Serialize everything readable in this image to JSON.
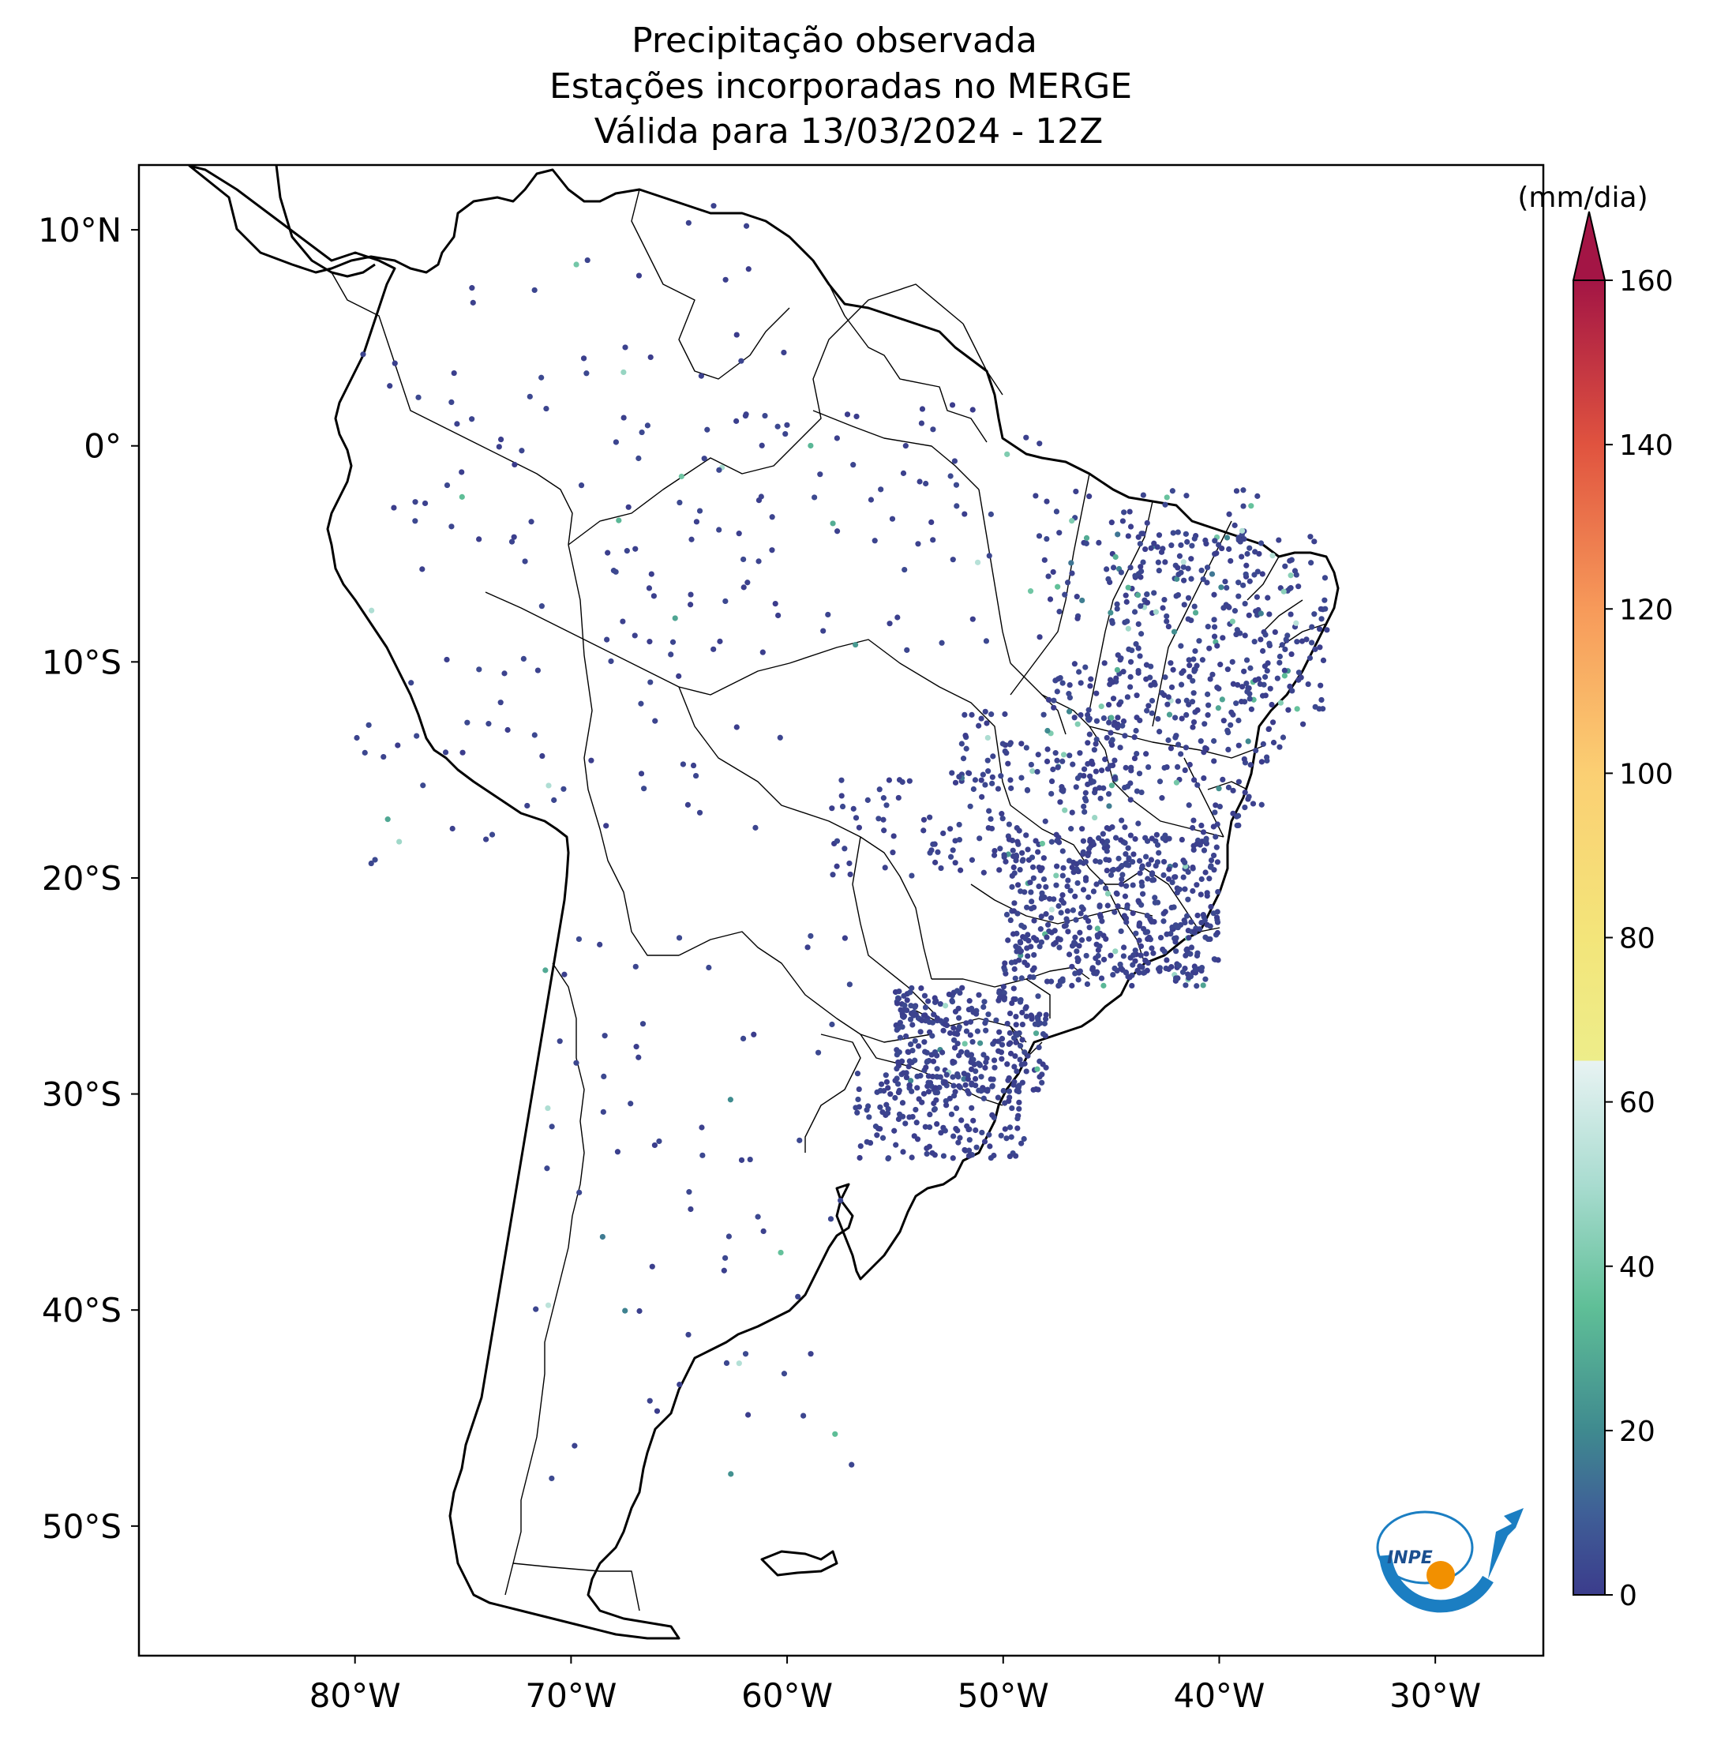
{
  "title": {
    "line1": "Precipitação observada",
    "line2": "Estações incorporadas no MERGE",
    "line3": "Válida para 13/03/2024 - 12Z"
  },
  "map": {
    "lon_range": [
      -90,
      -25
    ],
    "lat_range": [
      -56,
      13
    ],
    "lon_ticks": [
      {
        "value": -80,
        "label": "80°W"
      },
      {
        "value": -70,
        "label": "70°W"
      },
      {
        "value": -60,
        "label": "60°W"
      },
      {
        "value": -50,
        "label": "50°W"
      },
      {
        "value": -40,
        "label": "40°W"
      },
      {
        "value": -30,
        "label": "30°W"
      }
    ],
    "lat_ticks": [
      {
        "value": 10,
        "label": "10°N"
      },
      {
        "value": 0,
        "label": "0°"
      },
      {
        "value": -10,
        "label": "10°S"
      },
      {
        "value": -20,
        "label": "20°S"
      },
      {
        "value": -30,
        "label": "30°S"
      },
      {
        "value": -40,
        "label": "40°S"
      },
      {
        "value": -50,
        "label": "50°S"
      }
    ]
  },
  "colorbar": {
    "unit": "(mm/dia)",
    "min": 0,
    "max": 160,
    "ticks": [
      {
        "value": 0,
        "label": "0"
      },
      {
        "value": 20,
        "label": "20"
      },
      {
        "value": 40,
        "label": "40"
      },
      {
        "value": 60,
        "label": "60"
      },
      {
        "value": 80,
        "label": "80"
      },
      {
        "value": 100,
        "label": "100"
      },
      {
        "value": 120,
        "label": "120"
      },
      {
        "value": 140,
        "label": "140"
      },
      {
        "value": 160,
        "label": "160"
      }
    ],
    "stops": [
      {
        "value": 0,
        "color": "#3b3c8c"
      },
      {
        "value": 10,
        "color": "#3f5f97"
      },
      {
        "value": 20,
        "color": "#3f8a8f"
      },
      {
        "value": 35,
        "color": "#5fbf97"
      },
      {
        "value": 50,
        "color": "#a9dcd0"
      },
      {
        "value": 65,
        "color": "#e8f3f3"
      },
      {
        "value": 65.01,
        "color": "#eded8a"
      },
      {
        "value": 80,
        "color": "#f3e57a"
      },
      {
        "value": 100,
        "color": "#fbcf73"
      },
      {
        "value": 120,
        "color": "#f79a5a"
      },
      {
        "value": 140,
        "color": "#e0533f"
      },
      {
        "value": 160,
        "color": "#a31545"
      }
    ],
    "extend_color": "#a31545"
  },
  "logo": {
    "text": "INPE",
    "ring_color": "#1b7ec2",
    "sun_color": "#f29000"
  }
}
